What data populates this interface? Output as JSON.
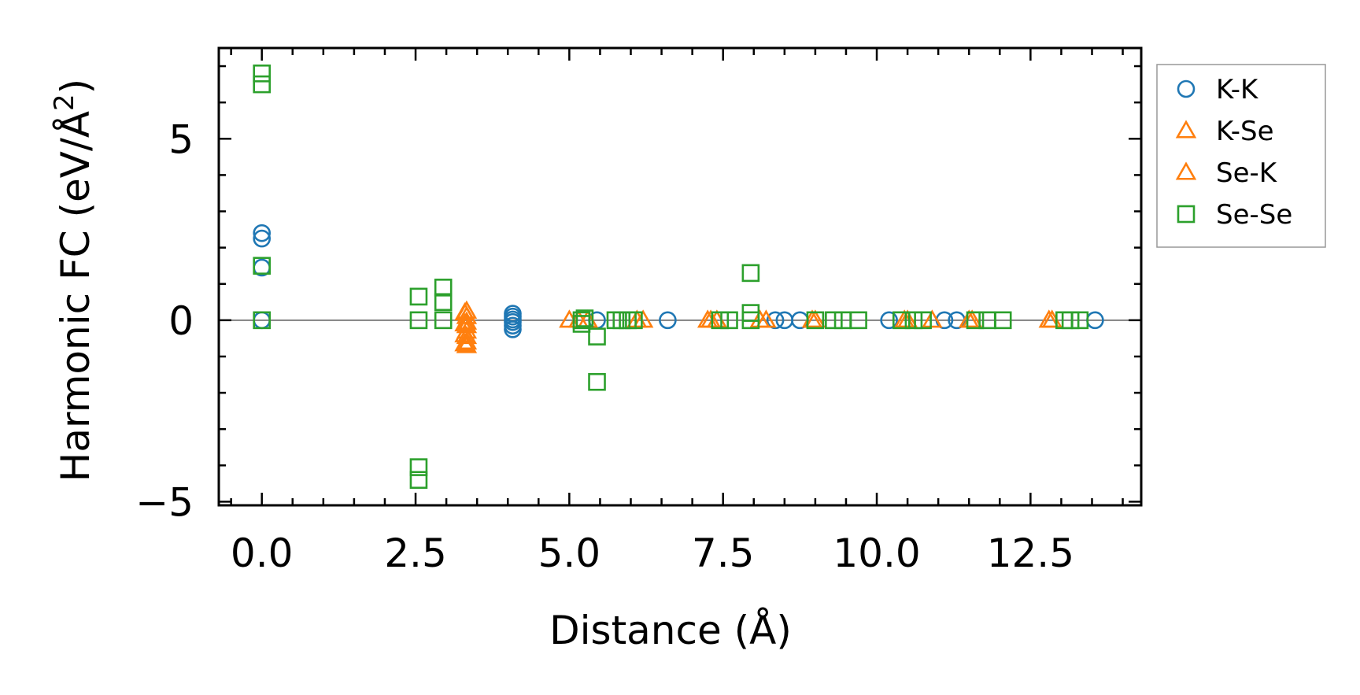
{
  "chart_data": {
    "type": "scatter",
    "title": "",
    "xlabel": "Distance (Å)",
    "ylabel_main": "Harmonic FC (eV/Å",
    "ylabel_sup": "2",
    "ylabel_close": ")",
    "xlim": [
      -0.7,
      14.3
    ],
    "ylim": [
      -5.1,
      7.5
    ],
    "x_ticks": [
      0.0,
      2.5,
      5.0,
      7.5,
      10.0,
      12.5
    ],
    "x_tick_labels": [
      "0.0",
      "2.5",
      "5.0",
      "7.5",
      "10.0",
      "12.5"
    ],
    "y_ticks": [
      -5,
      0,
      5
    ],
    "y_tick_labels": [
      "−5",
      "0",
      "5"
    ],
    "reference_line_y": 0,
    "legend_position": "outside-right-top",
    "series": [
      {
        "name": "K-K",
        "marker": "circle",
        "color": "#1f77b4",
        "points": [
          [
            0.0,
            2.4
          ],
          [
            0.0,
            2.25
          ],
          [
            0.0,
            1.45
          ],
          [
            0.0,
            0.0
          ],
          [
            4.08,
            0.18
          ],
          [
            4.08,
            0.1
          ],
          [
            4.08,
            0.02
          ],
          [
            4.08,
            -0.05
          ],
          [
            4.08,
            -0.15
          ],
          [
            4.08,
            -0.25
          ],
          [
            5.45,
            0.0
          ],
          [
            6.6,
            0.0
          ],
          [
            8.35,
            0.0
          ],
          [
            8.5,
            0.0
          ],
          [
            8.75,
            0.0
          ],
          [
            10.2,
            0.0
          ],
          [
            11.1,
            0.0
          ],
          [
            11.3,
            0.0
          ],
          [
            13.55,
            0.0
          ]
        ]
      },
      {
        "name": "K-Se",
        "marker": "triangle",
        "color": "#ff7f0e",
        "points": [
          [
            3.33,
            0.25
          ],
          [
            3.33,
            0.1
          ],
          [
            3.33,
            -0.05
          ],
          [
            3.33,
            -0.15
          ],
          [
            3.33,
            -0.3
          ],
          [
            3.33,
            -0.45
          ],
          [
            3.33,
            -0.6
          ],
          [
            3.33,
            -0.7
          ],
          [
            5.0,
            0.0
          ],
          [
            5.3,
            0.0
          ],
          [
            6.2,
            0.0
          ],
          [
            7.25,
            0.0
          ],
          [
            7.4,
            0.0
          ],
          [
            8.2,
            0.0
          ],
          [
            8.95,
            0.0
          ],
          [
            10.45,
            0.0
          ],
          [
            10.9,
            0.0
          ],
          [
            11.5,
            0.0
          ],
          [
            12.8,
            0.0
          ]
        ]
      },
      {
        "name": "Se-K",
        "marker": "triangle",
        "color": "#ff7f0e",
        "points": [
          [
            3.3,
            0.2
          ],
          [
            3.3,
            -0.1
          ],
          [
            3.3,
            -0.4
          ],
          [
            3.3,
            -0.65
          ],
          [
            5.15,
            0.0
          ],
          [
            6.1,
            0.0
          ],
          [
            7.3,
            0.0
          ],
          [
            8.1,
            0.0
          ],
          [
            9.0,
            0.0
          ],
          [
            10.5,
            0.0
          ],
          [
            11.55,
            0.0
          ],
          [
            12.85,
            0.0
          ]
        ]
      },
      {
        "name": "Se-Se",
        "marker": "square",
        "color": "#2ca02c",
        "points": [
          [
            0.0,
            6.8
          ],
          [
            0.0,
            6.5
          ],
          [
            0.0,
            1.5
          ],
          [
            0.0,
            0.0
          ],
          [
            2.55,
            0.65
          ],
          [
            2.55,
            0.0
          ],
          [
            2.55,
            -4.05
          ],
          [
            2.55,
            -4.4
          ],
          [
            2.95,
            0.9
          ],
          [
            2.95,
            0.5
          ],
          [
            2.95,
            0.0
          ],
          [
            5.2,
            0.0
          ],
          [
            5.2,
            -0.1
          ],
          [
            5.25,
            0.05
          ],
          [
            5.45,
            -0.45
          ],
          [
            5.45,
            -1.7
          ],
          [
            5.75,
            0.0
          ],
          [
            5.85,
            0.0
          ],
          [
            5.95,
            0.0
          ],
          [
            6.05,
            0.0
          ],
          [
            7.45,
            0.0
          ],
          [
            7.6,
            0.0
          ],
          [
            7.95,
            1.3
          ],
          [
            7.95,
            0.2
          ],
          [
            7.95,
            0.0
          ],
          [
            9.0,
            0.0
          ],
          [
            9.3,
            0.0
          ],
          [
            9.45,
            0.0
          ],
          [
            9.7,
            0.0
          ],
          [
            10.4,
            0.0
          ],
          [
            10.6,
            0.0
          ],
          [
            10.75,
            0.0
          ],
          [
            11.6,
            0.0
          ],
          [
            11.8,
            0.0
          ],
          [
            12.05,
            0.0
          ],
          [
            13.05,
            0.0
          ],
          [
            13.15,
            0.0
          ],
          [
            13.3,
            0.0
          ]
        ]
      }
    ]
  }
}
